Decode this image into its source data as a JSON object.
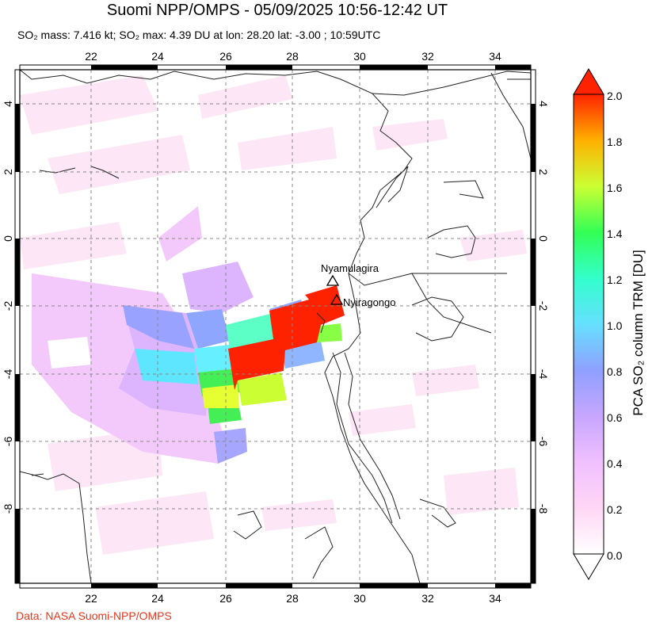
{
  "header": {
    "title": "Suomi NPP/OMPS - 05/09/2025 10:56-12:42 UT",
    "subtitle": "SO₂ mass: 7.416 kt; SO₂ max: 4.39 DU at lon: 28.20 lat: -3.00 ; 10:59UTC"
  },
  "footer": {
    "credit": "Data: NASA Suomi-NPP/OMPS"
  },
  "map": {
    "lon_ticks": [
      "22",
      "24",
      "26",
      "28",
      "30",
      "32",
      "34"
    ],
    "lat_ticks": [
      "4",
      "2",
      "0",
      "-2",
      "-4",
      "-6",
      "-8"
    ],
    "lon_range": [
      20,
      35
    ],
    "lat_range": [
      -10,
      5
    ],
    "volcanoes": [
      {
        "name": "Nyamulagira",
        "lon": 29.2,
        "lat": -1.4
      },
      {
        "name": "Nyiragongo",
        "lon": 29.25,
        "lat": -1.5
      }
    ]
  },
  "colorbar": {
    "label": "PCA SO₂ column TRM [DU]",
    "ticks": [
      "2.0",
      "1.8",
      "1.6",
      "1.4",
      "1.2",
      "1.0",
      "0.8",
      "0.6",
      "0.4",
      "0.2",
      "0.0"
    ],
    "colors": [
      "#ffffff",
      "#ffd6f5",
      "#e6b3ff",
      "#9d99ff",
      "#66ccff",
      "#33ffd6",
      "#33ff66",
      "#ccff33",
      "#ffcc00",
      "#ff6600",
      "#ff2200"
    ]
  }
}
